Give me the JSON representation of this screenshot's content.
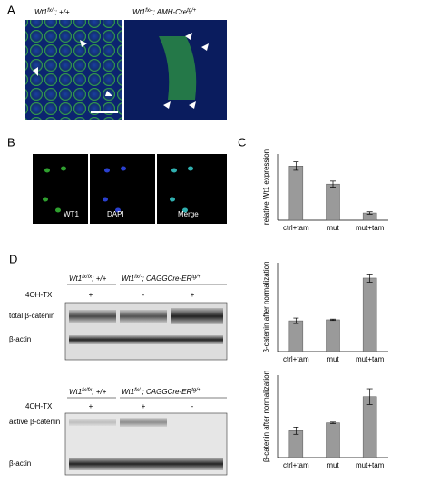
{
  "figure": {
    "panel_labels": [
      "A",
      "B",
      "C",
      "D"
    ],
    "a": {
      "left_caption": {
        "base": "Wt1",
        "sup": "fx/-",
        "rest": "; +/+"
      },
      "right_caption": {
        "base": "Wt1",
        "sup": "fx/-",
        "rest": "; AMH-Cre",
        "sup2": "tg/+"
      }
    },
    "b": {
      "channels": [
        "WT1",
        "DAPI",
        "Merge"
      ]
    },
    "d": {
      "blots": [
        {
          "genotype_left": {
            "base": "Wt1",
            "sup": "fx/fx",
            "rest": "; +/+"
          },
          "genotype_right": {
            "base": "Wt1",
            "sup": "fx/-",
            "rest": "; CAGGCre-ER",
            "sup2": "tg/+"
          },
          "treatment_label": "4OH-TX",
          "treatment": [
            "+",
            "-",
            "+"
          ],
          "rows": [
            "total β-catenin",
            "β-actin"
          ]
        },
        {
          "genotype_left": {
            "base": "Wt1",
            "sup": "fx/fx",
            "rest": "; +/+"
          },
          "genotype_right": {
            "base": "Wt1",
            "sup": "fx/-",
            "rest": "; CAGGCre-ER",
            "sup2": "tg/+"
          },
          "treatment_label": "4OH-TX",
          "treatment": [
            "+",
            "+",
            "-"
          ],
          "rows": [
            "active β-catenin",
            "β-actin"
          ]
        }
      ]
    }
  },
  "chart_data": [
    {
      "type": "bar",
      "ylabel": "relative Wt1 expression",
      "categories": [
        "ctrl+tam",
        "mut",
        "mut+tam"
      ],
      "values": [
        9,
        6,
        1.2
      ],
      "errors": [
        0.7,
        0.5,
        0.2
      ],
      "color": "#9a9a9a",
      "ylim": [
        0,
        11
      ]
    },
    {
      "type": "bar",
      "ylabel": "β-catenin after normalization",
      "categories": [
        "ctrl+tam",
        "mut",
        "mut+tam"
      ],
      "values": [
        0.9,
        0.93,
        2.15
      ],
      "errors": [
        0.08,
        0.02,
        0.12
      ],
      "color": "#9a9a9a",
      "ylim": [
        0,
        2.6
      ]
    },
    {
      "type": "bar",
      "ylabel": "β-catenin after normalization",
      "categories": [
        "ctrl+tam",
        "mut",
        "mut+tam"
      ],
      "values": [
        0.75,
        0.97,
        1.7
      ],
      "errors": [
        0.1,
        0.02,
        0.22
      ],
      "color": "#9a9a9a",
      "ylim": [
        0,
        2.3
      ]
    }
  ]
}
